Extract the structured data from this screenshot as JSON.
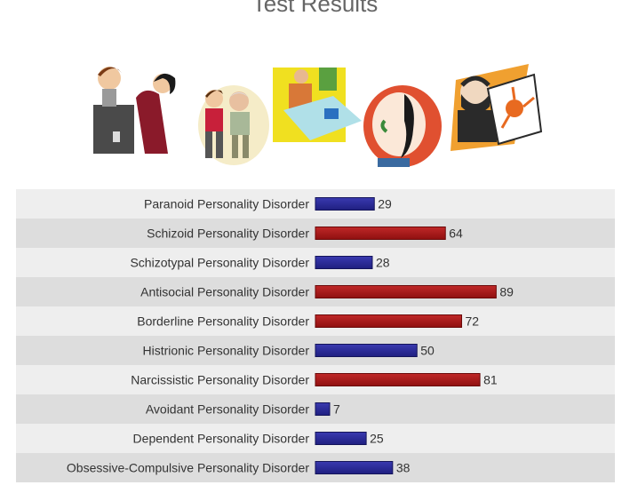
{
  "title": "Test Results",
  "illustrations": [
    {
      "name": "couple-arguing-illustration"
    },
    {
      "name": "caregiver-elderly-illustration"
    },
    {
      "name": "person-at-desk-illustration"
    },
    {
      "name": "face-profile-illustration"
    },
    {
      "name": "artist-drawing-illustration"
    }
  ],
  "colors": {
    "row_light": "#eeeeee",
    "row_dark": "#dddddd",
    "bar_blue": "#1f1f80",
    "bar_red": "#8f1010",
    "label_text": "#333333"
  },
  "chart_data": {
    "type": "bar",
    "orientation": "horizontal",
    "title": "Test Results",
    "xlabel": "",
    "ylabel": "",
    "xlim": [
      0,
      100
    ],
    "grid": false,
    "legend": "none",
    "categories": [
      "Paranoid Personality Disorder",
      "Schizoid Personality Disorder",
      "Schizotypal Personality Disorder",
      "Antisocial Personality Disorder",
      "Borderline Personality Disorder",
      "Histrionic Personality Disorder",
      "Narcissistic Personality Disorder",
      "Avoidant Personality Disorder",
      "Dependent Personality Disorder",
      "Obsessive-Compulsive Personality Disorder"
    ],
    "values": [
      29,
      64,
      28,
      89,
      72,
      50,
      81,
      7,
      25,
      38
    ],
    "bar_colors": [
      "blue",
      "red",
      "blue",
      "red",
      "red",
      "blue",
      "red",
      "blue",
      "blue",
      "blue"
    ]
  }
}
